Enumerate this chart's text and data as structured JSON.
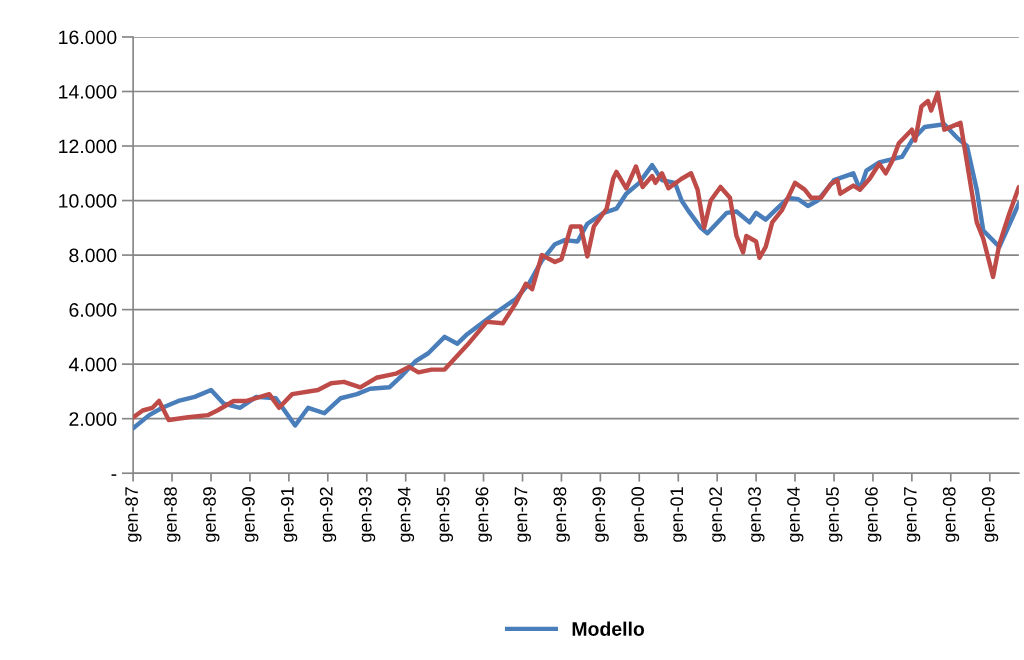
{
  "chart_data": {
    "type": "line",
    "series": [
      {
        "name": "Modello",
        "color": "#4a7ebb",
        "x": [
          "1987-01",
          "1987-06",
          "1987-10",
          "1988-03",
          "1988-08",
          "1989-01",
          "1989-05",
          "1989-10",
          "1990-03",
          "1990-09",
          "1991-03",
          "1991-07",
          "1991-12",
          "1992-05",
          "1992-10",
          "1993-02",
          "1993-08",
          "1993-12",
          "1994-04",
          "1994-08",
          "1995-01",
          "1995-05",
          "1995-08",
          "1996-05",
          "1996-11",
          "1997-03",
          "1997-07",
          "1997-11",
          "1998-02",
          "1998-06",
          "1998-09",
          "1999-02",
          "1999-06",
          "1999-09",
          "2000-01",
          "2000-05",
          "2000-08",
          "2000-12",
          "2001-02",
          "2001-04",
          "2001-08",
          "2001-10",
          "2002-04",
          "2002-07",
          "2002-11",
          "2003-01",
          "2003-04",
          "2003-07",
          "2003-11",
          "2004-02",
          "2004-05",
          "2004-08",
          "2005-01",
          "2005-07",
          "2005-09",
          "2005-11",
          "2006-03",
          "2006-08",
          "2006-10",
          "2007-01",
          "2007-05",
          "2007-11",
          "2008-03",
          "2008-06",
          "2008-09",
          "2008-11",
          "2009-04",
          "2009-10"
        ],
        "values": [
          1650,
          2130,
          2400,
          2650,
          2800,
          3050,
          2550,
          2400,
          2800,
          2750,
          1750,
          2400,
          2200,
          2750,
          2900,
          3100,
          3150,
          3600,
          4100,
          4400,
          5000,
          4750,
          5100,
          5900,
          6400,
          6950,
          7800,
          8400,
          8550,
          8500,
          9150,
          9550,
          9700,
          10250,
          10650,
          11300,
          10750,
          10650,
          10000,
          9650,
          9000,
          8800,
          9550,
          9600,
          9200,
          9550,
          9300,
          9650,
          10100,
          10050,
          9800,
          10000,
          10750,
          11000,
          10400,
          11100,
          11400,
          11550,
          11600,
          12200,
          12700,
          12800,
          12300,
          12000,
          10400,
          8900,
          8300,
          9900
        ]
      },
      {
        "color": "#be4b48",
        "x": [
          "1987-01",
          "1987-04",
          "1987-07",
          "1987-09",
          "1987-12",
          "1988-06",
          "1988-12",
          "1989-03",
          "1989-08",
          "1989-12",
          "1990-07",
          "1990-10",
          "1991-02",
          "1991-10",
          "1992-02",
          "1992-06",
          "1992-11",
          "1993-04",
          "1993-10",
          "1994-02",
          "1994-05",
          "1994-09",
          "1995-01",
          "1995-08",
          "1996-02",
          "1996-07",
          "1996-11",
          "1997-02",
          "1997-04",
          "1997-07",
          "1997-11",
          "1998-01",
          "1998-04",
          "1998-07",
          "1998-09",
          "1998-11",
          "1999-03",
          "1999-05",
          "1999-06",
          "1999-09",
          "1999-12",
          "2000-02",
          "2000-05",
          "2000-06",
          "2000-08",
          "2000-10",
          "2001-02",
          "2001-05",
          "2001-07",
          "2001-09",
          "2001-11",
          "2002-02",
          "2002-05",
          "2002-07",
          "2002-09",
          "2002-10",
          "2003-01",
          "2003-02",
          "2003-04",
          "2003-06",
          "2003-09",
          "2004-01",
          "2004-04",
          "2004-06",
          "2004-09",
          "2004-12",
          "2005-02",
          "2005-03",
          "2005-07",
          "2005-09",
          "2005-12",
          "2006-03",
          "2006-05",
          "2006-07",
          "2006-09",
          "2007-01",
          "2007-02",
          "2007-04",
          "2007-06",
          "2007-07",
          "2007-09",
          "2007-11",
          "2008-04",
          "2008-06",
          "2008-09",
          "2008-11",
          "2009-02",
          "2009-04",
          "2009-07",
          "2009-10"
        ],
        "values": [
          2050,
          2300,
          2400,
          2650,
          1950,
          2050,
          2130,
          2300,
          2650,
          2650,
          2900,
          2400,
          2900,
          3050,
          3300,
          3350,
          3150,
          3500,
          3650,
          3900,
          3700,
          3800,
          3800,
          4700,
          5550,
          5500,
          6250,
          6950,
          6750,
          8000,
          7750,
          7850,
          9050,
          9050,
          7950,
          9050,
          9700,
          10800,
          11050,
          10450,
          11250,
          10500,
          10900,
          10650,
          11000,
          10450,
          10800,
          11000,
          10400,
          9000,
          10000,
          10500,
          10100,
          8700,
          8100,
          8700,
          8500,
          7900,
          8300,
          9200,
          9650,
          10650,
          10400,
          10100,
          10100,
          10600,
          10750,
          10250,
          10550,
          10400,
          10800,
          11350,
          11000,
          11450,
          12100,
          12600,
          12200,
          13450,
          13650,
          13300,
          13950,
          12600,
          12850,
          11400,
          9200,
          8600,
          7200,
          8400,
          9500,
          10500
        ]
      }
    ],
    "xlim": [
      "1987-01",
      "2009-10"
    ],
    "xticks": [
      {
        "value": "1987-01",
        "label": "gen-87"
      },
      {
        "value": "1988-01",
        "label": "gen-88"
      },
      {
        "value": "1989-01",
        "label": "gen-89"
      },
      {
        "value": "1990-01",
        "label": "gen-90"
      },
      {
        "value": "1991-01",
        "label": "gen-91"
      },
      {
        "value": "1992-01",
        "label": "gen-92"
      },
      {
        "value": "1993-01",
        "label": "gen-93"
      },
      {
        "value": "1994-01",
        "label": "gen-94"
      },
      {
        "value": "1995-01",
        "label": "gen-95"
      },
      {
        "value": "1996-01",
        "label": "gen-96"
      },
      {
        "value": "1997-01",
        "label": "gen-97"
      },
      {
        "value": "1998-01",
        "label": "gen-98"
      },
      {
        "value": "1999-01",
        "label": "gen-99"
      },
      {
        "value": "2000-01",
        "label": "gen-00"
      },
      {
        "value": "2001-01",
        "label": "gen-01"
      },
      {
        "value": "2002-01",
        "label": "gen-02"
      },
      {
        "value": "2003-01",
        "label": "gen-03"
      },
      {
        "value": "2004-01",
        "label": "gen-04"
      },
      {
        "value": "2005-01",
        "label": "gen-05"
      },
      {
        "value": "2006-01",
        "label": "gen-06"
      },
      {
        "value": "2007-01",
        "label": "gen-07"
      },
      {
        "value": "2008-01",
        "label": "gen-08"
      },
      {
        "value": "2009-01",
        "label": "gen-09"
      }
    ],
    "ylim": [
      0,
      16000
    ],
    "yticks": [
      {
        "value": 0,
        "label": "-"
      },
      {
        "value": 2000,
        "label": "2.000"
      },
      {
        "value": 4000,
        "label": "4.000"
      },
      {
        "value": 6000,
        "label": "6.000"
      },
      {
        "value": 8000,
        "label": "8.000"
      },
      {
        "value": 10000,
        "label": "10.000"
      },
      {
        "value": 12000,
        "label": "12.000"
      },
      {
        "value": 14000,
        "label": "14.000"
      },
      {
        "value": 16000,
        "label": "16.000"
      }
    ],
    "grid": "y",
    "legend": "bottom",
    "marker": "none",
    "line_style": "solid"
  }
}
